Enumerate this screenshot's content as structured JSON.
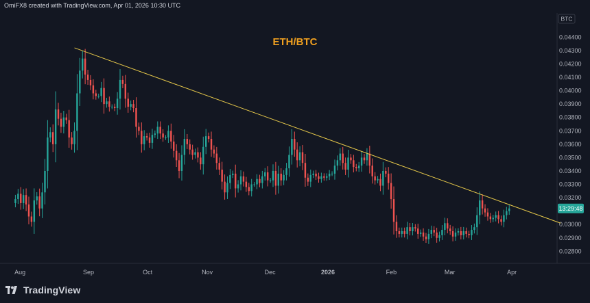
{
  "header": {
    "credit": "OmiFX8 created with TradingView.com, Apr 01, 2026 10:30 UTC"
  },
  "footer": {
    "brand": "TradingView"
  },
  "colors": {
    "background": "#131722",
    "up_candle": "#26a69a",
    "down_candle": "#ef5350",
    "trendline": "#e6c84a",
    "title": "#f0a020",
    "axis_text": "#b2b5be",
    "price_badge": "#26a69a"
  },
  "chart_data": {
    "type": "candlestick",
    "title": "ETH/BTC",
    "currency_label": "BTC",
    "current_price_label": "13:29:48",
    "x_labels": [
      "Aug",
      "Sep",
      "Oct",
      "Nov",
      "Dec",
      "2026",
      "Feb",
      "Mar",
      "Apr"
    ],
    "x_label_positions": [
      0.125,
      1.25,
      2.22,
      3.2,
      4.23,
      5.18,
      6.22,
      7.18,
      8.2
    ],
    "y_ticks": [
      "0.04400",
      "0.04300",
      "0.04200",
      "0.04100",
      "0.04000",
      "0.03900",
      "0.03800",
      "0.03700",
      "0.03600",
      "0.03500",
      "0.03400",
      "0.03300",
      "0.03200",
      "0.03000",
      "0.02900",
      "0.02800"
    ],
    "grid": false,
    "trendline": {
      "start": [
        1.02,
        0.0432
      ],
      "end": [
        9.0,
        0.0301
      ]
    },
    "x_max": 9.0,
    "approx_closes": [
      0.0319,
      0.0323,
      0.0316,
      0.0322,
      0.0315,
      0.0306,
      0.0302,
      0.0318,
      0.0321,
      0.0312,
      0.0324,
      0.034,
      0.0365,
      0.0369,
      0.036,
      0.0386,
      0.0379,
      0.0373,
      0.038,
      0.0378,
      0.0365,
      0.036,
      0.037,
      0.0398,
      0.0415,
      0.0424,
      0.0412,
      0.0408,
      0.0404,
      0.0398,
      0.0396,
      0.0396,
      0.0402,
      0.039,
      0.0392,
      0.0388,
      0.0388,
      0.0387,
      0.0394,
      0.0408,
      0.0405,
      0.0394,
      0.0388,
      0.039,
      0.0387,
      0.0373,
      0.037,
      0.036,
      0.0366,
      0.0365,
      0.0361,
      0.0367,
      0.0368,
      0.0373,
      0.0368,
      0.0365,
      0.0365,
      0.037,
      0.0362,
      0.0355,
      0.0348,
      0.034,
      0.0352,
      0.0364,
      0.036,
      0.0356,
      0.0352,
      0.0354,
      0.035,
      0.0345,
      0.0358,
      0.0366,
      0.0364,
      0.0356,
      0.0353,
      0.0346,
      0.0341,
      0.0332,
      0.0324,
      0.0331,
      0.0337,
      0.0338,
      0.0327,
      0.033,
      0.0336,
      0.0332,
      0.0328,
      0.0325,
      0.033,
      0.033,
      0.0334,
      0.0331,
      0.0336,
      0.0339,
      0.0333,
      0.0333,
      0.034,
      0.0329,
      0.0338,
      0.0333,
      0.0337,
      0.0342,
      0.0352,
      0.0364,
      0.0356,
      0.0348,
      0.0354,
      0.0346,
      0.0335,
      0.0332,
      0.0337,
      0.0338,
      0.0336,
      0.0334,
      0.0336,
      0.0335,
      0.0336,
      0.0338,
      0.0338,
      0.0344,
      0.0348,
      0.0353,
      0.0346,
      0.0341,
      0.035,
      0.0348,
      0.0343,
      0.0342,
      0.0344,
      0.035,
      0.0348,
      0.0353,
      0.0344,
      0.0336,
      0.0333,
      0.0334,
      0.0329,
      0.034,
      0.0338,
      0.0331,
      0.0319,
      0.0302,
      0.0295,
      0.0293,
      0.0295,
      0.0293,
      0.0298,
      0.0295,
      0.0298,
      0.0297,
      0.0293,
      0.0294,
      0.0291,
      0.0289,
      0.0293,
      0.0296,
      0.0294,
      0.029,
      0.0292,
      0.0296,
      0.0301,
      0.0297,
      0.0295,
      0.0291,
      0.0294,
      0.0295,
      0.0292,
      0.0295,
      0.0293,
      0.0292,
      0.0296,
      0.0298,
      0.0307,
      0.0318,
      0.0312,
      0.0309,
      0.0306,
      0.0304,
      0.0305,
      0.0307,
      0.0304,
      0.0302,
      0.0307,
      0.031,
      0.0312
    ]
  }
}
